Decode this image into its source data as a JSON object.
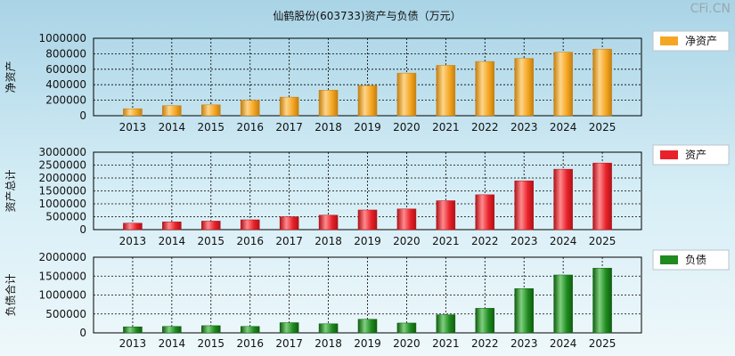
{
  "title": "仙鹤股份(603733)资产与负债（万元）",
  "watermark": "CFi.CN",
  "chart_data": [
    {
      "type": "bar",
      "ylabel": "净资产",
      "legend": "净资产",
      "legend_position": "top-right",
      "color": "#f5a623",
      "color_light": "#fdd58a",
      "color_dark": "#c57f0e",
      "categories": [
        "2013",
        "2014",
        "2015",
        "2016",
        "2017",
        "2018",
        "2019",
        "2020",
        "2021",
        "2022",
        "2023",
        "2024",
        "2025"
      ],
      "values": [
        90000,
        130000,
        140000,
        200000,
        240000,
        330000,
        390000,
        550000,
        650000,
        700000,
        740000,
        820000,
        860000
      ],
      "ylim": [
        0,
        1000000
      ],
      "yticks": [
        0,
        200000,
        400000,
        600000,
        800000,
        1000000
      ],
      "grid": true
    },
    {
      "type": "bar",
      "ylabel": "资产总计",
      "legend": "资产",
      "legend_position": "top-right",
      "color": "#e8222a",
      "color_light": "#ff8a8e",
      "color_dark": "#b01218",
      "categories": [
        "2013",
        "2014",
        "2015",
        "2016",
        "2017",
        "2018",
        "2019",
        "2020",
        "2021",
        "2022",
        "2023",
        "2024",
        "2025"
      ],
      "values": [
        250000,
        300000,
        330000,
        380000,
        500000,
        560000,
        760000,
        800000,
        1120000,
        1350000,
        1890000,
        2340000,
        2580000
      ],
      "ylim": [
        0,
        3000000
      ],
      "yticks": [
        0,
        500000,
        1000000,
        1500000,
        2000000,
        2500000,
        3000000
      ],
      "grid": true
    },
    {
      "type": "bar",
      "ylabel": "负债合计",
      "legend": "负债",
      "legend_position": "top-right",
      "color": "#1f8a1f",
      "color_light": "#7fd07f",
      "color_dark": "#0f5e0f",
      "categories": [
        "2013",
        "2014",
        "2015",
        "2016",
        "2017",
        "2018",
        "2019",
        "2020",
        "2021",
        "2022",
        "2023",
        "2024",
        "2025"
      ],
      "values": [
        160000,
        170000,
        190000,
        170000,
        270000,
        240000,
        360000,
        260000,
        480000,
        650000,
        1170000,
        1530000,
        1710000
      ],
      "ylim": [
        0,
        2000000
      ],
      "yticks": [
        0,
        500000,
        1000000,
        1500000,
        2000000
      ],
      "grid": true
    }
  ]
}
